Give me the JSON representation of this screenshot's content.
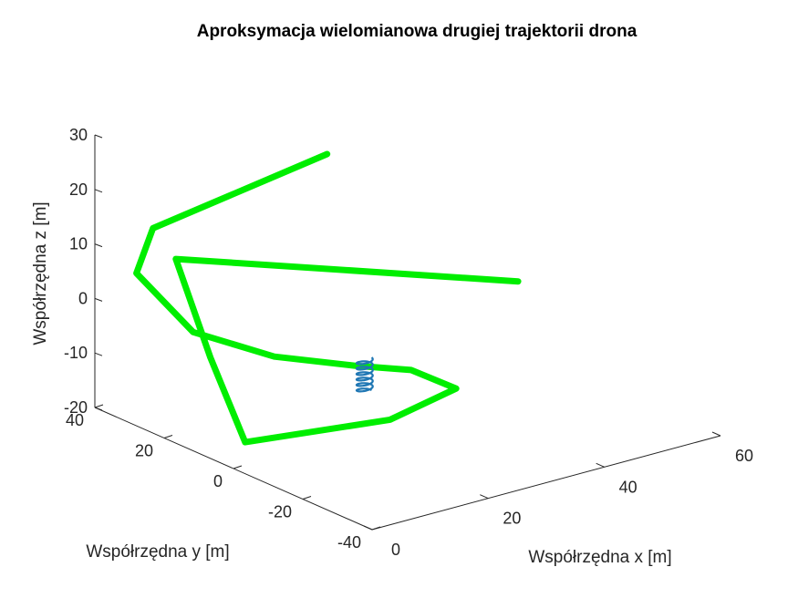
{
  "chart_data": {
    "type": "line3d",
    "title": "Aproksymacja wielomianowa drugiej trajektorii drona",
    "xlabel": "Współrzędna x [m]",
    "ylabel": "Współrzędna y [m]",
    "zlabel": "Współrzędna z [m]",
    "x_ticks": [
      "0",
      "20",
      "40",
      "60"
    ],
    "y_ticks": [
      "40",
      "20",
      "0",
      "-20",
      "-40"
    ],
    "z_ticks": [
      "30",
      "20",
      "10",
      "0",
      "-10",
      "-20"
    ],
    "xlim": [
      0,
      60
    ],
    "ylim": [
      -40,
      40
    ],
    "zlim": [
      -20,
      30
    ],
    "grid": false,
    "series": [
      {
        "color": "#00ee00",
        "style": "thick polyline",
        "points_xyz": [
          [
            40,
            40,
            15
          ],
          [
            10,
            40,
            10
          ],
          [
            0,
            28,
            8
          ],
          [
            5,
            20,
            -2
          ],
          [
            13,
            10,
            -6
          ],
          [
            22,
            2,
            -8
          ],
          [
            27,
            -6,
            -8
          ],
          [
            30,
            -14,
            -10
          ],
          [
            18,
            -15,
            -12
          ],
          [
            5,
            5,
            -18
          ],
          [
            2,
            10,
            -3
          ],
          [
            5,
            25,
            10
          ],
          [
            52,
            5,
            -2
          ]
        ]
      },
      {
        "color": "#1f77b4",
        "style": "small helix",
        "center_xyz": [
          22,
          -1,
          -9
        ],
        "radius": 1.2,
        "z_range": [
          -12,
          -6
        ],
        "turns": 6
      }
    ]
  }
}
